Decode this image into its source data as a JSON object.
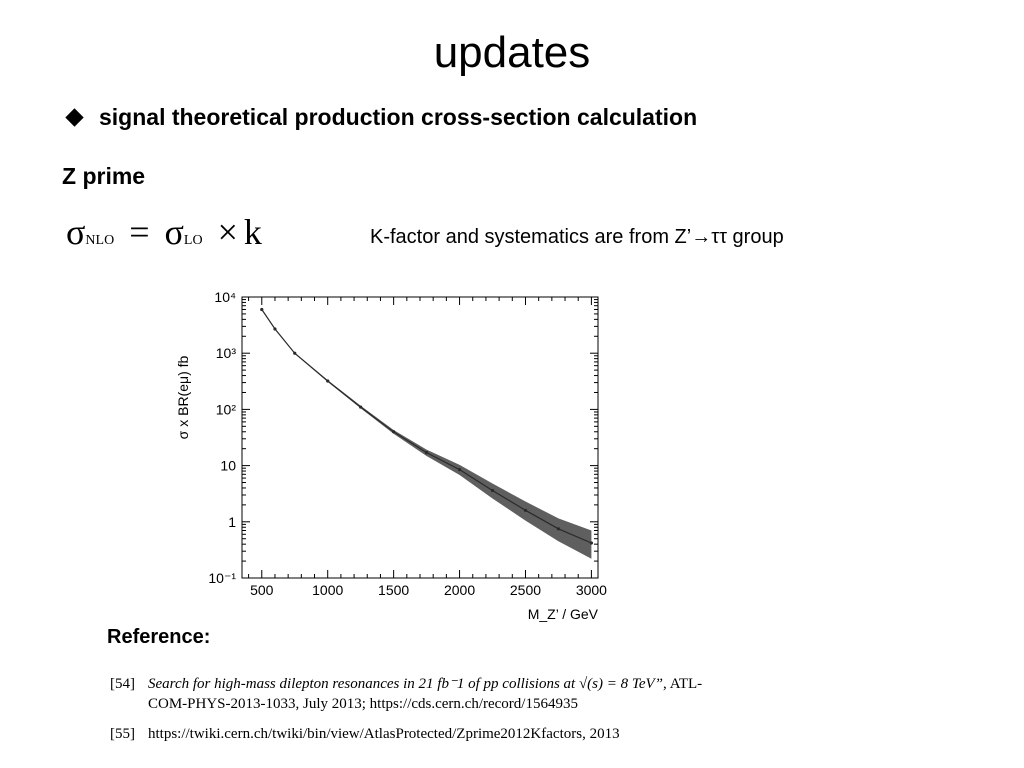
{
  "slide": {
    "title": "updates",
    "bullet": "signal theoretical production cross-section calculation",
    "subheading": "Z prime",
    "formula": {
      "lhs": "σ",
      "lhs_sub": "NLO",
      "equals": "=",
      "rhs": "σ",
      "rhs_sub": "LO",
      "times": "×",
      "factor": "k"
    },
    "kfactor_note": "K-factor and systematics  are from Z’→ττ group",
    "reference_label": "Reference:",
    "references": [
      {
        "num": "[54]",
        "italic": "Search for high-mass dilepton resonances in 21 fb⁻1 of pp collisions at √(s) = 8 TeV”",
        "rest_line1": ", ATL-",
        "line2": "COM-PHYS-2013-1033, July 2013; https://cds.cern.ch/record/1564935"
      },
      {
        "num": "[55]",
        "text": "https://twiki.cern.ch/twiki/bin/view/AtlasProtected/Zprime2012Kfactors, 2013"
      }
    ]
  },
  "chart_data": {
    "type": "area",
    "xlabel": "M_Z’ / GeV",
    "ylabel": "σ x BR(eμ) fb",
    "yscale": "log",
    "xlim": [
      350,
      3050
    ],
    "ylim": [
      0.1,
      10000
    ],
    "x_ticks": [
      500,
      1000,
      1500,
      2000,
      2500,
      3000
    ],
    "x_tick_labels": [
      "500",
      "1000",
      "1500",
      "2000",
      "2500",
      "3000"
    ],
    "y_ticks": [
      0.1,
      1,
      10,
      100,
      1000,
      10000
    ],
    "y_tick_labels": [
      "10⁻¹",
      "1",
      "10",
      "10²",
      "10³",
      "10⁴"
    ],
    "grid": false,
    "legend": "none",
    "colors": {
      "band": "#5f5f5f",
      "line": "#2a2a2a"
    },
    "series": [
      {
        "x": [
          500,
          600,
          750,
          1000,
          1250,
          1500,
          1750,
          2000,
          2250,
          2500,
          2750,
          3000
        ],
        "y": [
          6000,
          2700,
          1000,
          320,
          110,
          40,
          17,
          8.5,
          3.6,
          1.6,
          0.75,
          0.42
        ],
        "y_low": [
          5900,
          2650,
          975,
          308,
          104,
          37,
          14.8,
          6.8,
          2.6,
          1.05,
          0.45,
          0.22
        ],
        "y_high": [
          6100,
          2760,
          1025,
          332,
          116,
          43,
          19.3,
          10.3,
          4.8,
          2.3,
          1.15,
          0.7
        ]
      }
    ]
  }
}
